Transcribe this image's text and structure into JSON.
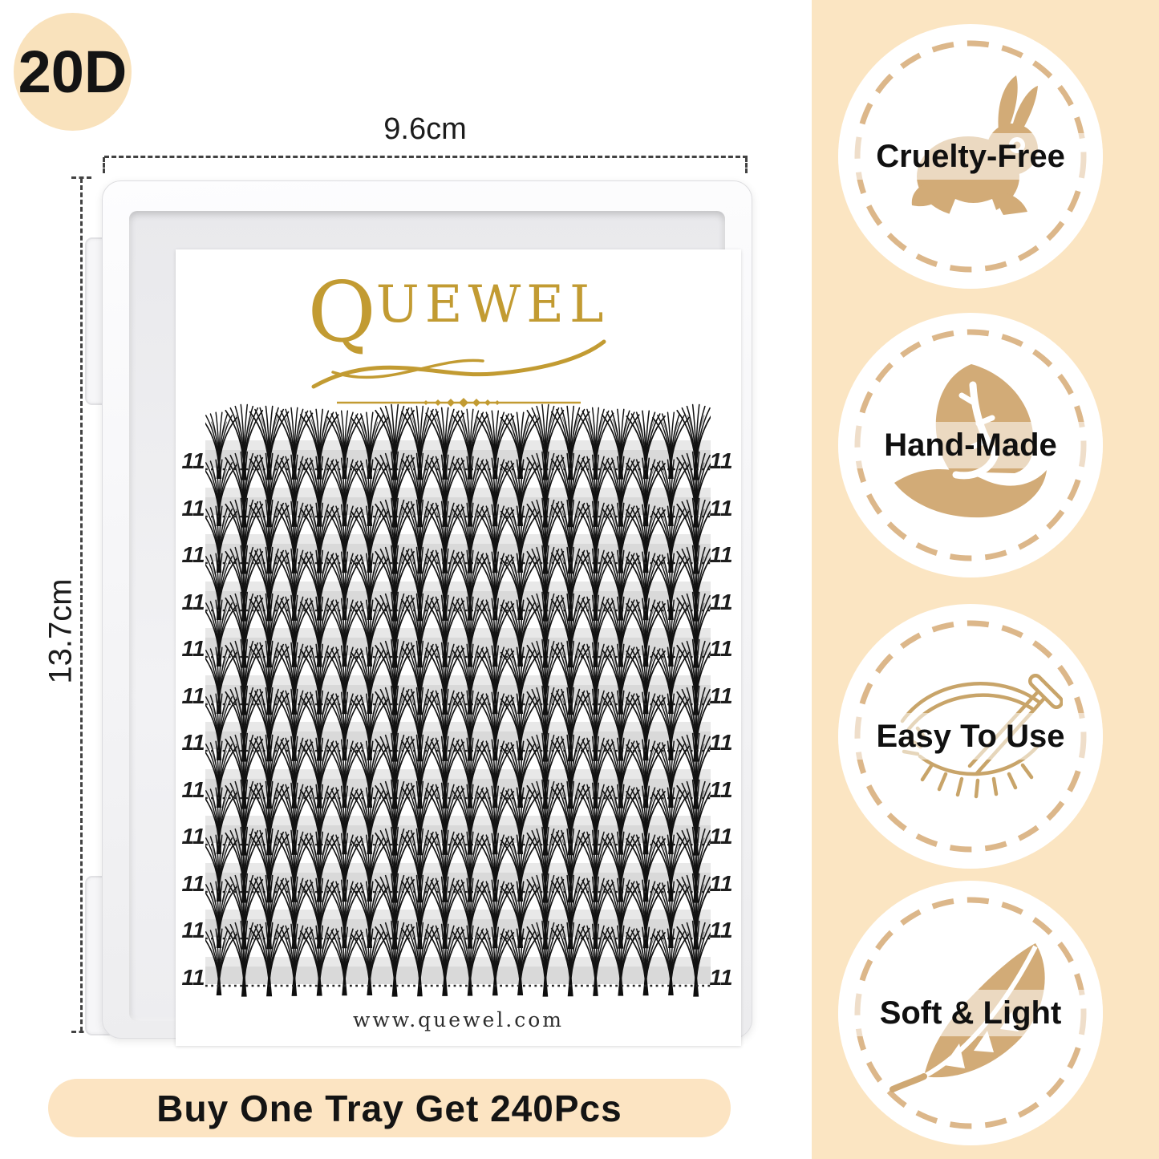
{
  "density_badge": "20D",
  "dimensions": {
    "width_label": "9.6cm",
    "height_label": "13.7cm"
  },
  "tray": {
    "brand_q": "Q",
    "brand_rest": "UEWEL",
    "website": "www.quewel.com",
    "row_count": 12,
    "clusters_per_row": 20,
    "row_label": "11"
  },
  "promo": "Buy One Tray Get 240Pcs",
  "features": [
    {
      "label": "Cruelty-Free",
      "icon": "rabbit-icon"
    },
    {
      "label": "Hand-Made",
      "icon": "hand-leaf-icon"
    },
    {
      "label": "Easy To Use",
      "icon": "eye-tweezer-icon"
    },
    {
      "label": "Soft & Light",
      "icon": "feather-icon"
    }
  ],
  "colors": {
    "cream_band": "#fbe5c2",
    "cream_circle": "#f9e2bc",
    "cream_pill": "#fce4c2",
    "tan_icon": "#d2ab77",
    "tan_dash": "#dcb78a",
    "gold_logo": "#c29b32",
    "text": "#141414"
  }
}
